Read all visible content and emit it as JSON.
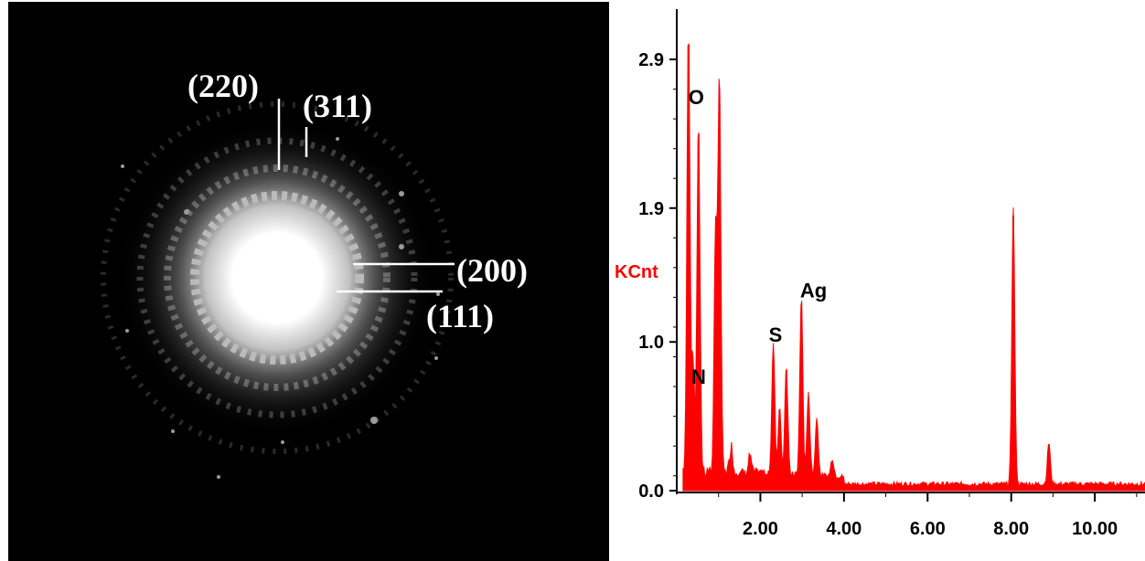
{
  "saed": {
    "ring_labels": [
      "(220)",
      "(311)",
      "(200)",
      "(111)"
    ]
  },
  "chart_data": {
    "type": "line",
    "title": "",
    "xlabel": "",
    "ylabel": "KCnt",
    "xlim": [
      0,
      11.2
    ],
    "ylim": [
      0,
      3.0
    ],
    "x_ticks": [
      "2.00",
      "4.00",
      "6.00",
      "8.00",
      "10.00"
    ],
    "x_tick_values": [
      2,
      4,
      6,
      8,
      10
    ],
    "y_ticks": [
      "0.0",
      "1.0",
      "1.9",
      "2.9"
    ],
    "y_tick_values": [
      0,
      1.0,
      1.9,
      2.9
    ],
    "series": [
      {
        "color": "#ff0000",
        "peaks": [
          {
            "x": 0.28,
            "y": 3.0
          },
          {
            "x": 0.39,
            "y": 0.75
          },
          {
            "x": 0.52,
            "y": 2.35
          },
          {
            "x": 0.93,
            "y": 1.6
          },
          {
            "x": 1.02,
            "y": 2.6
          },
          {
            "x": 1.3,
            "y": 0.18
          },
          {
            "x": 1.75,
            "y": 0.12
          },
          {
            "x": 2.31,
            "y": 0.88
          },
          {
            "x": 2.46,
            "y": 0.45
          },
          {
            "x": 2.62,
            "y": 0.73
          },
          {
            "x": 2.98,
            "y": 1.2
          },
          {
            "x": 3.15,
            "y": 0.55
          },
          {
            "x": 3.35,
            "y": 0.38
          },
          {
            "x": 3.72,
            "y": 0.12
          },
          {
            "x": 8.05,
            "y": 1.85
          },
          {
            "x": 8.9,
            "y": 0.28
          }
        ],
        "background": 0.03
      }
    ],
    "annotations": [
      {
        "text": "O",
        "x": 0.28,
        "y": 2.6
      },
      {
        "text": "N",
        "x": 0.35,
        "y": 0.72
      },
      {
        "text": "S",
        "x": 2.2,
        "y": 1.0
      },
      {
        "text": "Ag",
        "x": 2.95,
        "y": 1.3
      }
    ],
    "colors": {
      "spectrum": "#ff0000",
      "ylabel": "#ff0000",
      "axis": "#000000"
    }
  }
}
